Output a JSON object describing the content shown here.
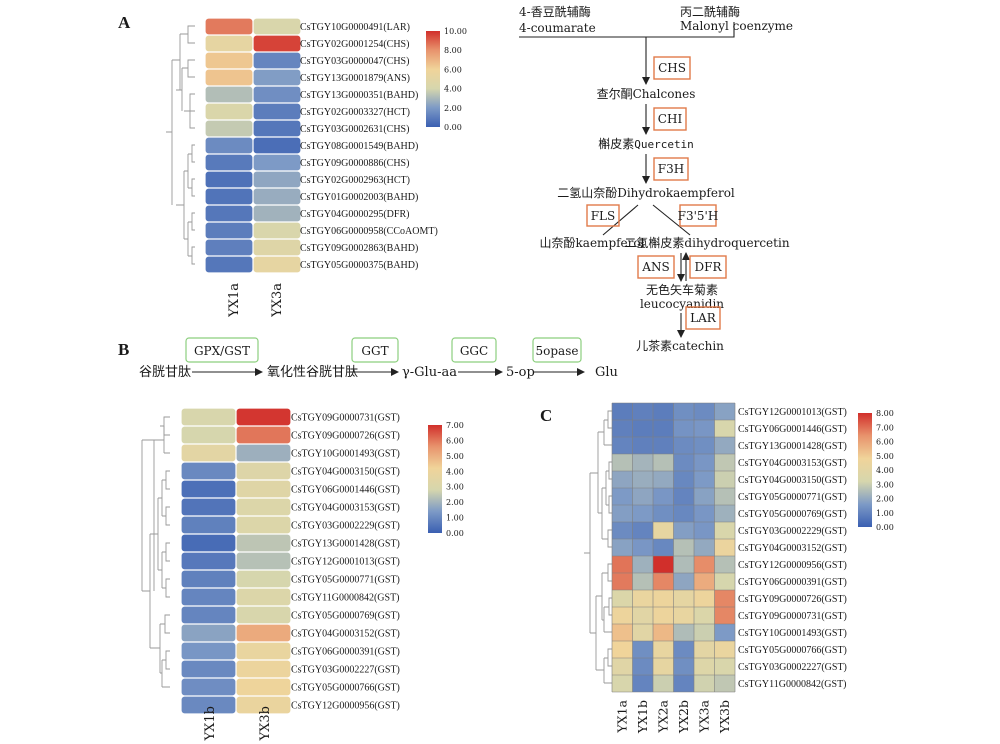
{
  "panels": {
    "a": "A",
    "b": "B",
    "c": "C"
  },
  "colors": {
    "scale": [
      "#3a5fb2",
      "#7d9ac6",
      "#d6d6ad",
      "#f0d49a",
      "#e8936d",
      "#d12f2b"
    ],
    "enzyme_box": "#e07b4a",
    "green_box": "#8ccf7e"
  },
  "heatmap_a": {
    "genes": [
      "CsTGY10G0000491(LAR)",
      "CsTGY02G0001254(CHS)",
      "CsTGY03G0000047(CHS)",
      "CsTGY13G0001879(ANS)",
      "CsTGY13G0000351(BAHD)",
      "CsTGY02G0003327(HCT)",
      "CsTGY03G0002631(CHS)",
      "CsTGY08G0001549(BAHD)",
      "CsTGY09G0000886(CHS)",
      "CsTGY02G0002963(HCT)",
      "CsTGY01G0002003(BAHD)",
      "CsTGY04G0000295(DFR)",
      "CsTGY06G0000958(CCoAOMT)",
      "CsTGY09G0002863(BAHD)",
      "CsTGY05G0000375(BAHD)"
    ],
    "samples": [
      "YX1a",
      "YX3a"
    ],
    "values": [
      [
        8.5,
        4.2
      ],
      [
        5.2,
        9.6
      ],
      [
        6.4,
        1.3
      ],
      [
        6.5,
        2.1
      ],
      [
        3.2,
        1.6
      ],
      [
        4.3,
        1.0
      ],
      [
        3.6,
        0.8
      ],
      [
        1.5,
        0.5
      ],
      [
        0.9,
        2.0
      ],
      [
        0.6,
        2.4
      ],
      [
        0.7,
        2.6
      ],
      [
        0.8,
        2.8
      ],
      [
        1.0,
        4.2
      ],
      [
        1.1,
        4.6
      ],
      [
        0.8,
        5.2
      ]
    ],
    "legend": {
      "max": 10,
      "ticks": [
        "10.00",
        "8.00",
        "6.00",
        "4.00",
        "2.00",
        "0.00"
      ]
    }
  },
  "pathway_a": {
    "coumarate_cn": "4-香豆酰辅酶",
    "coumarate_en": "4-coumarate",
    "malonyl_cn": "丙二酰辅酶",
    "malonyl_en": "Malonyl coenzyme",
    "chs": "CHS",
    "chalcones": "查尔酮Chalcones",
    "chi": "CHI",
    "quercetin_cn": "槲皮素",
    "quercetin_en": "Quercetin",
    "f3h": "F3H",
    "dihydrokaempferol": "二氢山奈酚Dihydrokaempferol",
    "fls": "FLS",
    "f35h": "F3'5'H",
    "kaempferol": "山奈酚kaempferol",
    "dihydroquercetin": "二氢槲皮素dihydroquercetin",
    "ans": "ANS",
    "dfr": "DFR",
    "leuco_cn": "无色矢车菊素",
    "leuco_en": "leucocyanidin",
    "lar": "LAR",
    "catechin": "儿茶素catechin"
  },
  "pathway_b": {
    "gsh": "谷胱甘肽",
    "gpx": "GPX/GST",
    "gssg": "氧化性谷胱甘肽",
    "ggt": "GGT",
    "glu_aa": "γ-Glu-aa",
    "ggc": "GGC",
    "op": "5-op",
    "opase": "5opase",
    "glu": "Glu"
  },
  "heatmap_b": {
    "genes": [
      "CsTGY09G0000731(GST)",
      "CsTGY09G0000726(GST)",
      "CsTGY10G0001493(GST)",
      "CsTGY04G0003150(GST)",
      "CsTGY06G0001446(GST)",
      "CsTGY04G0003153(GST)",
      "CsTGY03G0002229(GST)",
      "CsTGY13G0001428(GST)",
      "CsTGY12G0001013(GST)",
      "CsTGY05G0000771(GST)",
      "CsTGY11G0000842(GST)",
      "CsTGY05G0000769(GST)",
      "CsTGY04G0003152(GST)",
      "CsTGY06G0000391(GST)",
      "CsTGY03G0002227(GST)",
      "CsTGY05G0000766(GST)",
      "CsTGY12G0000956(GST)"
    ],
    "samples": [
      "YX1b",
      "YX3b"
    ],
    "values": [
      [
        2.9,
        6.9
      ],
      [
        2.8,
        6.0
      ],
      [
        3.5,
        1.9
      ],
      [
        1.0,
        3.2
      ],
      [
        0.4,
        3.3
      ],
      [
        0.5,
        3.1
      ],
      [
        0.8,
        3.1
      ],
      [
        0.3,
        2.4
      ],
      [
        0.6,
        2.3
      ],
      [
        0.8,
        2.8
      ],
      [
        0.9,
        3.1
      ],
      [
        0.9,
        2.9
      ],
      [
        1.6,
        5.1
      ],
      [
        1.3,
        3.8
      ],
      [
        1.0,
        4.0
      ],
      [
        1.1,
        4.1
      ],
      [
        1.0,
        3.9
      ]
    ],
    "legend": {
      "max": 7,
      "ticks": [
        "7.00",
        "6.00",
        "5.00",
        "4.00",
        "3.00",
        "2.00",
        "1.00",
        "0.00"
      ]
    }
  },
  "heatmap_c": {
    "genes": [
      "CsTGY12G0001013(GST)",
      "CsTGY06G0001446(GST)",
      "CsTGY13G0001428(GST)",
      "CsTGY04G0003153(GST)",
      "CsTGY04G0003150(GST)",
      "CsTGY05G0000771(GST)",
      "CsTGY05G0000769(GST)",
      "CsTGY03G0002229(GST)",
      "CsTGY04G0003152(GST)",
      "CsTGY12G0000956(GST)",
      "CsTGY06G0000391(GST)",
      "CsTGY09G0000726(GST)",
      "CsTGY09G0000731(GST)",
      "CsTGY10G0001493(GST)",
      "CsTGY05G0000766(GST)",
      "CsTGY03G0002227(GST)",
      "CsTGY11G0000842(GST)"
    ],
    "samples": [
      "YX1a",
      "YX1b",
      "YX2a",
      "YX2b",
      "YX3a",
      "YX3b"
    ],
    "values": [
      [
        0.8,
        0.9,
        0.8,
        1.3,
        1.2,
        1.8
      ],
      [
        0.9,
        0.8,
        0.8,
        1.4,
        1.5,
        3.3
      ],
      [
        1.0,
        0.9,
        0.9,
        1.2,
        1.3,
        2.0
      ],
      [
        2.6,
        2.3,
        2.6,
        1.2,
        1.5,
        2.8
      ],
      [
        1.9,
        2.1,
        2.0,
        1.1,
        1.6,
        3.0
      ],
      [
        1.6,
        1.9,
        1.5,
        1.0,
        1.8,
        2.6
      ],
      [
        1.7,
        1.6,
        1.3,
        1.1,
        1.5,
        2.2
      ],
      [
        1.2,
        1.0,
        4.2,
        1.7,
        1.5,
        3.4
      ],
      [
        1.8,
        1.5,
        1.1,
        2.6,
        2.0,
        4.5
      ],
      [
        6.9,
        2.2,
        8.0,
        2.5,
        6.5,
        2.6
      ],
      [
        6.8,
        2.6,
        6.6,
        1.9,
        5.8,
        3.2
      ],
      [
        3.5,
        4.4,
        4.6,
        4.1,
        4.6,
        6.6
      ],
      [
        4.6,
        3.9,
        4.6,
        4.3,
        3.5,
        6.6
      ],
      [
        5.3,
        3.9,
        5.5,
        2.5,
        3.0,
        1.6
      ],
      [
        4.8,
        1.3,
        4.3,
        1.2,
        4.0,
        4.4
      ],
      [
        3.8,
        1.2,
        4.2,
        1.3,
        3.6,
        3.4
      ],
      [
        3.3,
        1.0,
        3.0,
        1.0,
        3.1,
        2.8
      ]
    ],
    "legend": {
      "max": 8,
      "ticks": [
        "8.00",
        "7.00",
        "6.00",
        "5.00",
        "4.00",
        "3.00",
        "2.00",
        "1.00",
        "0.00"
      ]
    }
  }
}
